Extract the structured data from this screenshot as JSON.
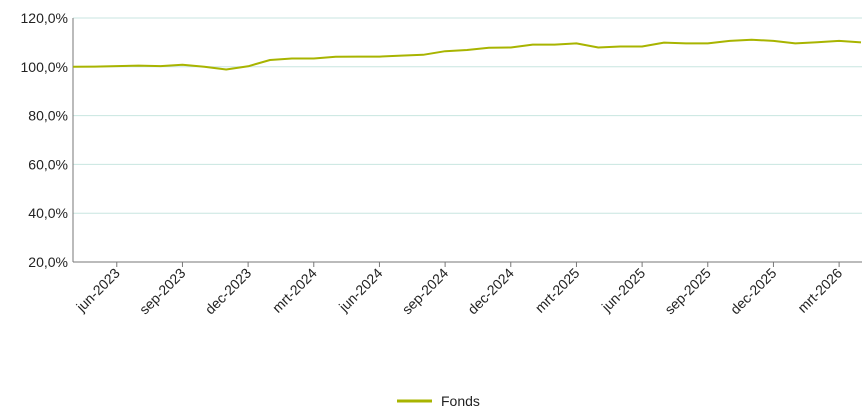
{
  "chart_data": {
    "type": "line",
    "title": "",
    "xlabel": "",
    "ylabel": "",
    "ylim": [
      20,
      120
    ],
    "y_ticks": [
      20,
      40,
      60,
      80,
      100,
      120
    ],
    "y_tick_labels": [
      "20,0%",
      "40,0%",
      "60,0%",
      "80,0%",
      "100,0%",
      "120,0%"
    ],
    "x_tick_labels": [
      "jun-2023",
      "sep-2023",
      "dec-2023",
      "mrt-2024",
      "jun-2024",
      "sep-2024",
      "dec-2024",
      "mrt-2025",
      "jun-2025",
      "sep-2025",
      "dec-2025",
      "mrt-2026"
    ],
    "grid": true,
    "legend_position": "bottom",
    "colors": {
      "series": "#a8b400",
      "grid": "#c8e6e0",
      "axis": "#777777"
    },
    "series": [
      {
        "name": "Fonds",
        "x": [
          "apr-2023",
          "mei-2023",
          "jun-2023",
          "jul-2023",
          "aug-2023",
          "sep-2023",
          "okt-2023",
          "nov-2023",
          "dec-2023",
          "jan-2024",
          "feb-2024",
          "mrt-2024",
          "apr-2024",
          "mei-2024",
          "jun-2024",
          "jul-2024",
          "aug-2024",
          "sep-2024",
          "okt-2024",
          "nov-2024",
          "dec-2024",
          "jan-2025",
          "feb-2025",
          "mrt-2025",
          "apr-2025",
          "mei-2025",
          "jun-2025",
          "jul-2025",
          "aug-2025",
          "sep-2025",
          "okt-2025",
          "nov-2025",
          "dec-2025",
          "jan-2026",
          "feb-2026",
          "mrt-2026",
          "apr-2026"
        ],
        "values": [
          100.0,
          100.1,
          100.3,
          100.5,
          100.3,
          100.8,
          100.0,
          98.9,
          100.2,
          102.8,
          103.4,
          103.4,
          104.1,
          104.2,
          104.2,
          104.6,
          104.9,
          106.4,
          106.9,
          107.8,
          107.9,
          109.1,
          109.1,
          109.6,
          107.9,
          108.3,
          108.3,
          109.9,
          109.6,
          109.6,
          110.6,
          111.1,
          110.6,
          109.6,
          110.1,
          110.6,
          110.0
        ]
      }
    ]
  }
}
